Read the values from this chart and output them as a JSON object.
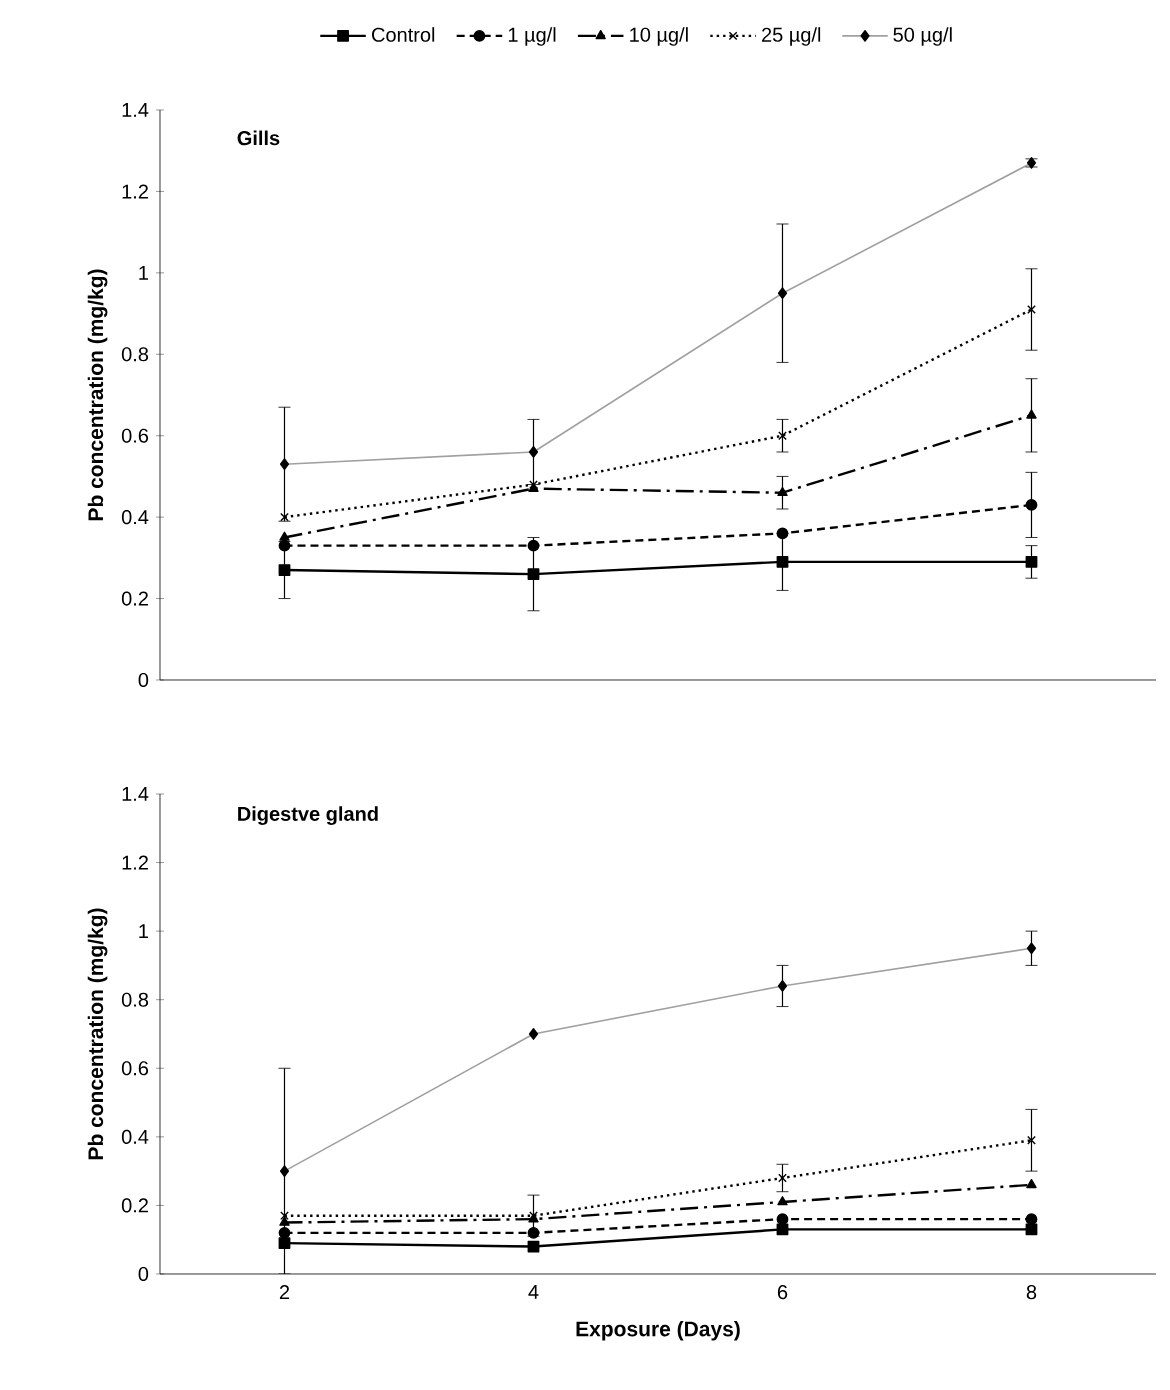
{
  "chart_data": [
    {
      "type": "line",
      "title": "Gills",
      "ylabel": "Pb concentration (mg/kg)",
      "categories": [
        "2",
        "4",
        "6",
        "8"
      ],
      "ylim": [
        0,
        1.4
      ],
      "yticks": [
        0,
        0.2,
        0.4,
        0.6,
        0.8,
        1,
        1.2,
        1.4
      ],
      "tick_labels": "y",
      "legend": "top",
      "series": [
        {
          "name": "Control",
          "color": "#000000",
          "marker": "square",
          "line_style": "solid",
          "values": [
            0.27,
            0.26,
            0.29,
            0.29
          ],
          "errors": [
            0.07,
            0.09,
            0.07,
            0.04
          ]
        },
        {
          "name": "1 µg/l",
          "color": "#000000",
          "marker": "circle",
          "line_style": "dashed",
          "values": [
            0.33,
            0.33,
            0.36,
            0.43
          ],
          "errors": [
            null,
            null,
            null,
            0.08
          ]
        },
        {
          "name": "10 µg/l",
          "color": "#000000",
          "marker": "triangle",
          "line_style": "dashdot",
          "values": [
            0.35,
            0.47,
            0.46,
            0.65
          ],
          "errors": [
            null,
            null,
            0.04,
            0.09
          ]
        },
        {
          "name": "25 µg/l",
          "color": "#000000",
          "marker": "cross",
          "line_style": "dotted",
          "values": [
            0.4,
            0.48,
            0.6,
            0.91
          ],
          "errors": [
            null,
            null,
            0.04,
            0.1
          ]
        },
        {
          "name": "50 µg/l",
          "color": "#a0a0a0",
          "marker": "diamond",
          "line_style": "solid",
          "values": [
            0.53,
            0.56,
            0.95,
            1.27
          ],
          "errors": [
            0.14,
            0.08,
            0.17,
            0.01
          ]
        }
      ]
    },
    {
      "type": "line",
      "title": "Digestve gland",
      "xlabel": "Exposure (Days)",
      "ylabel": "Pb concentration (mg/kg)",
      "categories": [
        "2",
        "4",
        "6",
        "8"
      ],
      "ylim": [
        0,
        1.4
      ],
      "yticks": [
        0,
        0.2,
        0.4,
        0.6,
        0.8,
        1,
        1.2,
        1.4
      ],
      "series": [
        {
          "color": "#000000",
          "marker": "square",
          "line_style": "solid",
          "values": [
            0.09,
            0.08,
            0.13,
            0.13
          ]
        },
        {
          "color": "#000000",
          "marker": "circle",
          "line_style": "dashed",
          "values": [
            0.12,
            0.12,
            0.16,
            0.16
          ]
        },
        {
          "color": "#000000",
          "marker": "triangle",
          "line_style": "dashdot",
          "values": [
            0.15,
            0.16,
            0.21,
            0.26
          ]
        },
        {
          "color": "#000000",
          "marker": "cross",
          "line_style": "dotted",
          "values": [
            0.17,
            0.17,
            0.28,
            0.39
          ],
          "errors": [
            null,
            0.06,
            0.04,
            0.09
          ]
        },
        {
          "color": "#a0a0a0",
          "marker": "diamond",
          "line_style": "solid",
          "values": [
            0.3,
            0.7,
            0.84,
            0.95
          ],
          "errors": [
            0.3,
            null,
            0.06,
            0.05
          ]
        }
      ]
    }
  ]
}
